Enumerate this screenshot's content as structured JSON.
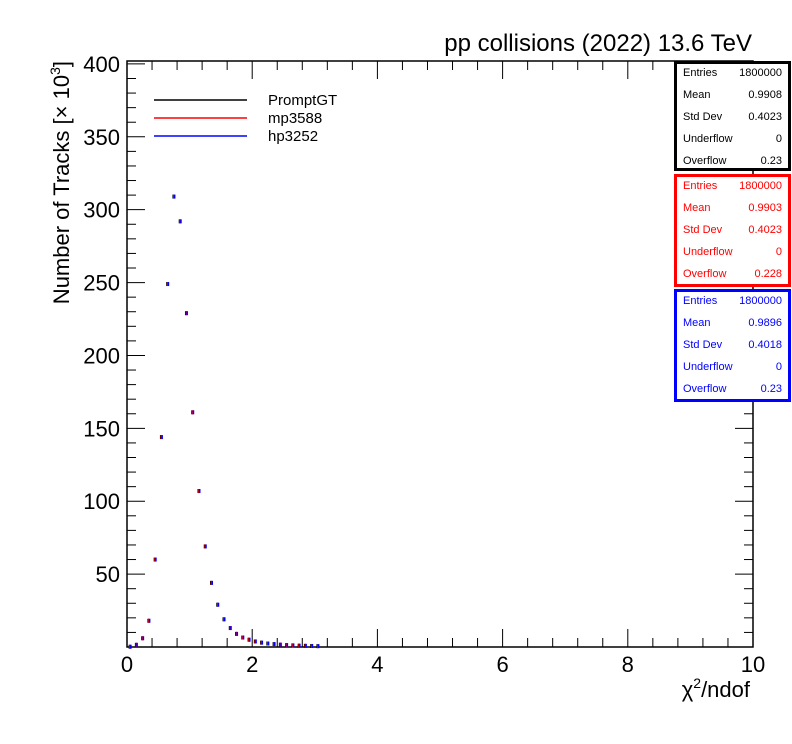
{
  "chart_data": {
    "type": "scatter",
    "title": "pp collisions (2022) 13.6 TeV",
    "xlabel": "χ²/ndof",
    "ylabel": "Number of Tracks [× 10³]",
    "xlim": [
      0,
      10
    ],
    "ylim": [
      0,
      402
    ],
    "x_ticks": [
      0,
      2,
      4,
      6,
      8,
      10
    ],
    "y_ticks": [
      50,
      100,
      150,
      200,
      250,
      300,
      350,
      400
    ],
    "grid": false,
    "legend_position": "top-left",
    "series": [
      {
        "name": "PromptGT",
        "color": "#000000",
        "points": [
          {
            "x": 0.05,
            "y": 0.2
          },
          {
            "x": 0.15,
            "y": 1.5
          },
          {
            "x": 0.25,
            "y": 6
          },
          {
            "x": 0.35,
            "y": 18
          },
          {
            "x": 0.45,
            "y": 60
          },
          {
            "x": 0.55,
            "y": 144
          },
          {
            "x": 0.65,
            "y": 249
          },
          {
            "x": 0.75,
            "y": 309
          },
          {
            "x": 0.85,
            "y": 292
          },
          {
            "x": 0.95,
            "y": 229
          },
          {
            "x": 1.05,
            "y": 161
          },
          {
            "x": 1.15,
            "y": 107
          },
          {
            "x": 1.25,
            "y": 69
          },
          {
            "x": 1.35,
            "y": 44
          },
          {
            "x": 1.45,
            "y": 29
          },
          {
            "x": 1.55,
            "y": 19
          },
          {
            "x": 1.65,
            "y": 13
          },
          {
            "x": 1.75,
            "y": 9
          },
          {
            "x": 1.85,
            "y": 6.5
          },
          {
            "x": 1.95,
            "y": 5
          },
          {
            "x": 2.05,
            "y": 3.8
          },
          {
            "x": 2.15,
            "y": 3
          },
          {
            "x": 2.25,
            "y": 2.4
          },
          {
            "x": 2.35,
            "y": 2
          },
          {
            "x": 2.45,
            "y": 1.6
          },
          {
            "x": 2.55,
            "y": 1.3
          },
          {
            "x": 2.65,
            "y": 1.1
          },
          {
            "x": 2.75,
            "y": 0.9
          },
          {
            "x": 2.85,
            "y": 0.8
          },
          {
            "x": 2.95,
            "y": 0.7
          },
          {
            "x": 3.05,
            "y": 0.6
          }
        ]
      },
      {
        "name": "mp3588",
        "color": "#ff0000",
        "points": [
          {
            "x": 0.05,
            "y": 0.2
          },
          {
            "x": 0.15,
            "y": 1.5
          },
          {
            "x": 0.25,
            "y": 6
          },
          {
            "x": 0.35,
            "y": 18
          },
          {
            "x": 0.45,
            "y": 60
          },
          {
            "x": 0.55,
            "y": 144
          },
          {
            "x": 0.65,
            "y": 249
          },
          {
            "x": 0.75,
            "y": 309
          },
          {
            "x": 0.85,
            "y": 292
          },
          {
            "x": 0.95,
            "y": 229
          },
          {
            "x": 1.05,
            "y": 161
          },
          {
            "x": 1.15,
            "y": 107
          },
          {
            "x": 1.25,
            "y": 69
          },
          {
            "x": 1.35,
            "y": 44
          },
          {
            "x": 1.45,
            "y": 29
          },
          {
            "x": 1.55,
            "y": 19
          },
          {
            "x": 1.65,
            "y": 13
          },
          {
            "x": 1.75,
            "y": 9
          },
          {
            "x": 1.85,
            "y": 6.5
          },
          {
            "x": 1.95,
            "y": 5
          },
          {
            "x": 2.05,
            "y": 3.8
          },
          {
            "x": 2.15,
            "y": 3
          },
          {
            "x": 2.25,
            "y": 2.4
          },
          {
            "x": 2.35,
            "y": 2
          },
          {
            "x": 2.45,
            "y": 1.6
          },
          {
            "x": 2.55,
            "y": 1.3
          },
          {
            "x": 2.65,
            "y": 1.1
          },
          {
            "x": 2.75,
            "y": 0.9
          },
          {
            "x": 2.85,
            "y": 0.8
          },
          {
            "x": 2.95,
            "y": 0.7
          },
          {
            "x": 3.05,
            "y": 0.6
          }
        ]
      },
      {
        "name": "hp3252",
        "color": "#0000ff",
        "points": [
          {
            "x": 0.05,
            "y": 0.2
          },
          {
            "x": 0.15,
            "y": 1.5
          },
          {
            "x": 0.25,
            "y": 6
          },
          {
            "x": 0.35,
            "y": 18
          },
          {
            "x": 0.45,
            "y": 60
          },
          {
            "x": 0.55,
            "y": 144
          },
          {
            "x": 0.65,
            "y": 249
          },
          {
            "x": 0.75,
            "y": 309
          },
          {
            "x": 0.85,
            "y": 292
          },
          {
            "x": 0.95,
            "y": 229
          },
          {
            "x": 1.05,
            "y": 161
          },
          {
            "x": 1.15,
            "y": 107
          },
          {
            "x": 1.25,
            "y": 69
          },
          {
            "x": 1.35,
            "y": 44
          },
          {
            "x": 1.45,
            "y": 29
          },
          {
            "x": 1.55,
            "y": 19
          },
          {
            "x": 1.65,
            "y": 13
          },
          {
            "x": 1.75,
            "y": 9
          },
          {
            "x": 1.85,
            "y": 6.5
          },
          {
            "x": 1.95,
            "y": 5
          },
          {
            "x": 2.05,
            "y": 3.8
          },
          {
            "x": 2.15,
            "y": 3
          },
          {
            "x": 2.25,
            "y": 2.4
          },
          {
            "x": 2.35,
            "y": 2
          },
          {
            "x": 2.45,
            "y": 1.6
          },
          {
            "x": 2.55,
            "y": 1.3
          },
          {
            "x": 2.65,
            "y": 1.1
          },
          {
            "x": 2.75,
            "y": 0.9
          },
          {
            "x": 2.85,
            "y": 0.8
          },
          {
            "x": 2.95,
            "y": 0.7
          },
          {
            "x": 3.05,
            "y": 0.6
          }
        ]
      }
    ],
    "stats_boxes": [
      {
        "color": "#000000",
        "rows": [
          {
            "label": "Entries",
            "value": "1800000"
          },
          {
            "label": "Mean",
            "value": "0.9908"
          },
          {
            "label": "Std Dev",
            "value": "0.4023"
          },
          {
            "label": "Underflow",
            "value": "0"
          },
          {
            "label": "Overflow",
            "value": "0.23"
          }
        ]
      },
      {
        "color": "#ff0000",
        "rows": [
          {
            "label": "Entries",
            "value": "1800000"
          },
          {
            "label": "Mean",
            "value": "0.9903"
          },
          {
            "label": "Std Dev",
            "value": "0.4023"
          },
          {
            "label": "Underflow",
            "value": "0"
          },
          {
            "label": "Overflow",
            "value": "0.228"
          }
        ]
      },
      {
        "color": "#0000ff",
        "rows": [
          {
            "label": "Entries",
            "value": "1800000"
          },
          {
            "label": "Mean",
            "value": "0.9896"
          },
          {
            "label": "Std Dev",
            "value": "0.4018"
          },
          {
            "label": "Underflow",
            "value": "0"
          },
          {
            "label": "Overflow",
            "value": "0.23"
          }
        ]
      }
    ]
  }
}
